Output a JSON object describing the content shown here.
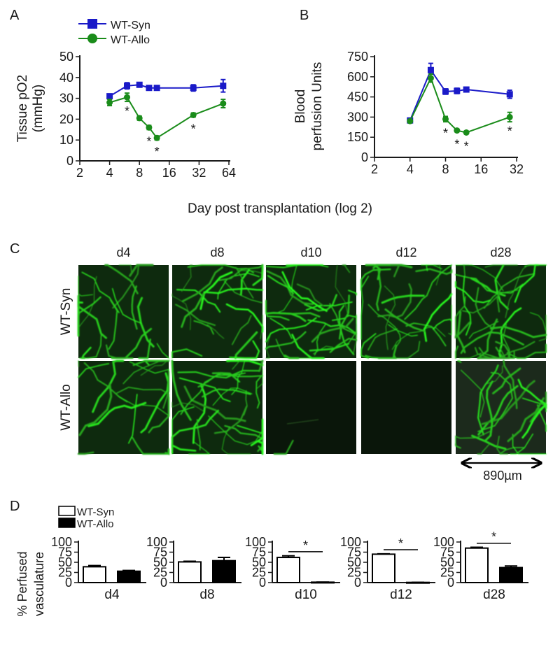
{
  "panel_labels": {
    "A": "A",
    "B": "B",
    "C": "C",
    "D": "D"
  },
  "shared_xlabel": "Day post transplantation (log 2)",
  "chart_data": [
    {
      "id": "A",
      "type": "line",
      "xscale": "log2",
      "xlim": [
        2,
        64
      ],
      "xticks": [
        "2",
        "4",
        "8",
        "16",
        "32",
        "64"
      ],
      "ylim": [
        0,
        50
      ],
      "yticks": [
        "0",
        "10",
        "20",
        "30",
        "40",
        "50"
      ],
      "ylabel": [
        "Tissue pO2",
        "(mmHg)"
      ],
      "legend": {
        "placement": "top-left",
        "entries": [
          "WT-Syn",
          "WT-Allo"
        ]
      },
      "series": [
        {
          "name": "WT-Syn",
          "color": "#1a1ac8",
          "marker": "square",
          "x": [
            4,
            6,
            8,
            10,
            12,
            28,
            56
          ],
          "y": [
            31,
            36,
            36.5,
            35,
            35,
            35,
            36
          ],
          "err": [
            1,
            1.5,
            1,
            0.8,
            0.8,
            1.5,
            3
          ]
        },
        {
          "name": "WT-Allo",
          "color": "#1a8c1a",
          "marker": "circle",
          "x": [
            4,
            6,
            8,
            10,
            12,
            28,
            56
          ],
          "y": [
            28,
            30.5,
            20.5,
            16,
            11,
            22,
            27.5
          ],
          "err": [
            1.5,
            2,
            1,
            1,
            1,
            1,
            2
          ]
        }
      ],
      "significance": [
        {
          "x": 6,
          "y": 30.5
        },
        {
          "x": 10,
          "y": 16
        },
        {
          "x": 12,
          "y": 11
        },
        {
          "x": 28,
          "y": 22
        }
      ],
      "sig_label": "*"
    },
    {
      "id": "B",
      "type": "line",
      "xscale": "log2",
      "xlim": [
        2,
        32
      ],
      "xticks": [
        "2",
        "4",
        "8",
        "16",
        "32"
      ],
      "ylim": [
        0,
        750
      ],
      "yticks": [
        "0",
        "150",
        "300",
        "450",
        "600",
        "750"
      ],
      "ylabel": [
        "Blood",
        "perfusion Units"
      ],
      "series": [
        {
          "name": "WT-Syn",
          "color": "#1a1ac8",
          "marker": "square",
          "x": [
            4,
            6,
            8,
            10,
            12,
            28
          ],
          "y": [
            275,
            650,
            490,
            495,
            505,
            470
          ],
          "err": [
            10,
            50,
            20,
            20,
            15,
            30
          ]
        },
        {
          "name": "WT-Allo",
          "color": "#1a8c1a",
          "marker": "circle",
          "x": [
            4,
            6,
            8,
            10,
            12,
            28
          ],
          "y": [
            270,
            590,
            285,
            200,
            185,
            300
          ],
          "err": [
            10,
            30,
            20,
            10,
            10,
            35
          ]
        }
      ],
      "significance": [
        {
          "x": 8,
          "y": 285
        },
        {
          "x": 10,
          "y": 200
        },
        {
          "x": 12,
          "y": 185
        },
        {
          "x": 28,
          "y": 300
        }
      ],
      "sig_label": "*"
    },
    {
      "id": "C",
      "type": "image_grid",
      "columns": [
        "d4",
        "d8",
        "d10",
        "d12",
        "d28"
      ],
      "rows": [
        "WT-Syn",
        "WT-Allo"
      ],
      "vessel_density": [
        [
          0.6,
          0.7,
          1.0,
          0.8,
          1.0
        ],
        [
          0.6,
          0.95,
          0.02,
          0.0,
          0.7
        ]
      ],
      "scale_bar": "890µm"
    },
    {
      "id": "D",
      "type": "bar",
      "ylabel": [
        "% Perfused",
        "vasculature"
      ],
      "ylim": [
        0,
        100
      ],
      "yticks": [
        "0",
        "25",
        "50",
        "75",
        "100"
      ],
      "legend": {
        "placement": "top-left",
        "entries": [
          "WT-Syn",
          "WT-Allo"
        ]
      },
      "series_colors": {
        "WT-Syn": "#ffffff",
        "WT-Allo": "#000000"
      },
      "groups": [
        {
          "name": "d4",
          "values": [
            39,
            28
          ],
          "err": [
            3,
            2
          ],
          "sig": false
        },
        {
          "name": "d8",
          "values": [
            51,
            54
          ],
          "err": [
            1.5,
            8
          ],
          "sig": false
        },
        {
          "name": "d10",
          "values": [
            62,
            1
          ],
          "err": [
            4,
            0.3
          ],
          "sig": true
        },
        {
          "name": "d12",
          "values": [
            70,
            0.5
          ],
          "err": [
            1,
            0.2
          ],
          "sig": true
        },
        {
          "name": "d28",
          "values": [
            85,
            37
          ],
          "err": [
            2,
            4
          ],
          "sig": true
        }
      ],
      "sig_label": "*"
    }
  ]
}
